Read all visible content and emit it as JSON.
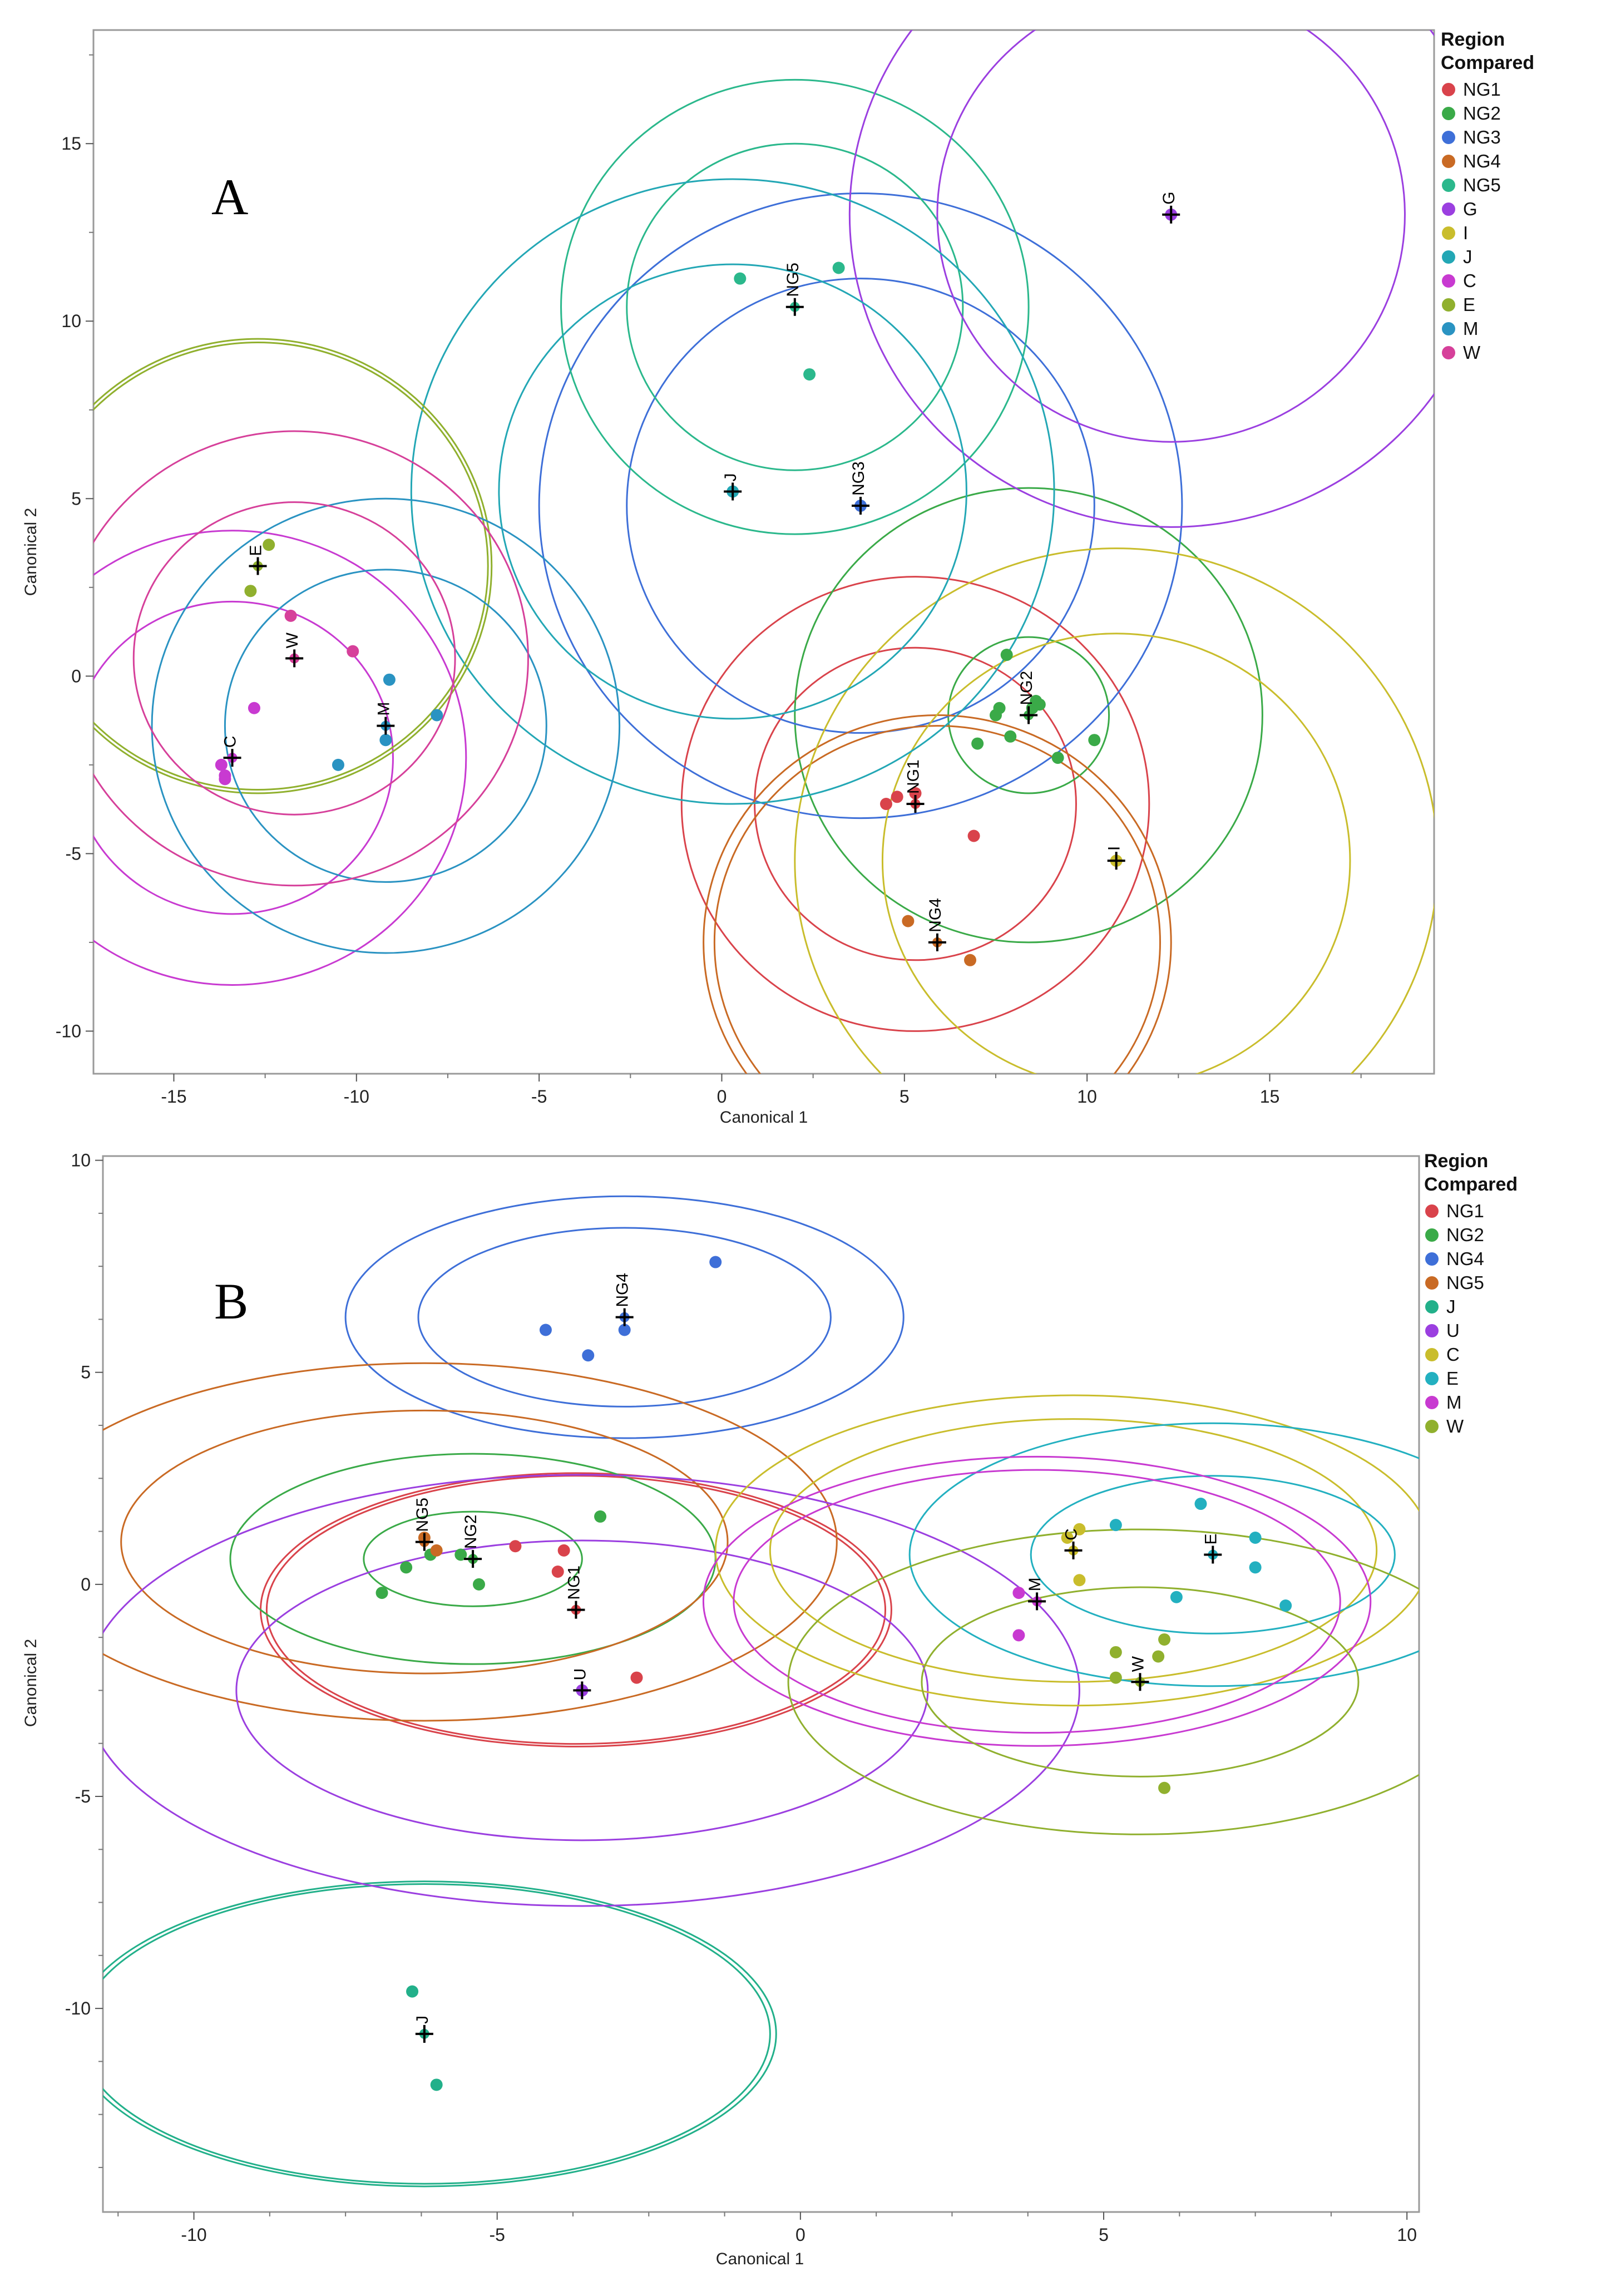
{
  "colors": {
    "NG1": "#d9434b",
    "NG2": "#3aaa48",
    "NG3": "#3e6fd8",
    "NG4": "#c96a24",
    "NG5": "#2bb88c",
    "G": "#9b3fe0",
    "I": "#c9bd2c",
    "J": "#23a7b5",
    "C": "#c83ad1",
    "E": "#90b02e",
    "M": "#2a93c2",
    "W": "#d6409a",
    "U": "#9b3fe0",
    "J2": "#22b08a",
    "E2": "#23b0c0",
    "M2": "#c83ad1",
    "W2": "#90b02e",
    "C2": "#c9bd2c",
    "NG5b": "#c96a24",
    "NG4b": "#3e6fd8"
  },
  "chart_data": [
    {
      "type": "scatter",
      "panel": "A",
      "title": "",
      "xlabel": "Canonical 1",
      "ylabel": "Canonical 2",
      "xlim": [
        -17.2,
        19.5
      ],
      "ylim": [
        -11.2,
        18.2
      ],
      "xticks": [
        "-15",
        "-10",
        "-5",
        "0",
        "5",
        "10",
        "15"
      ],
      "xtick_values": [
        -15,
        -10,
        -5,
        0,
        5,
        10,
        15
      ],
      "yticks": [
        "15",
        "10",
        "5",
        "0",
        "-5",
        "-10"
      ],
      "ytick_values": [
        15,
        10,
        5,
        0,
        -5,
        -10
      ],
      "legend_title": [
        "Region",
        "Compared"
      ],
      "legend": [
        {
          "label": "NG1",
          "color": "#d9434b"
        },
        {
          "label": "NG2",
          "color": "#3aaa48"
        },
        {
          "label": "NG3",
          "color": "#3e6fd8"
        },
        {
          "label": "NG4",
          "color": "#c96a24"
        },
        {
          "label": "NG5",
          "color": "#2bb88c"
        },
        {
          "label": "G",
          "color": "#9b3fe0"
        },
        {
          "label": "I",
          "color": "#c9bd2c"
        },
        {
          "label": "J",
          "color": "#23a7b5"
        },
        {
          "label": "C",
          "color": "#c83ad1"
        },
        {
          "label": "E",
          "color": "#90b02e"
        },
        {
          "label": "M",
          "color": "#2a93c2"
        },
        {
          "label": "W",
          "color": "#d6409a"
        }
      ],
      "groups": [
        {
          "name": "NG1",
          "color": "#d9434b",
          "centroid": [
            5.3,
            -3.6
          ],
          "r_inner": 4.4,
          "r_outer": 6.4,
          "points": [
            [
              4.5,
              -3.6
            ],
            [
              4.8,
              -3.4
            ],
            [
              5.3,
              -3.3
            ],
            [
              6.9,
              -4.5
            ]
          ]
        },
        {
          "name": "NG2",
          "color": "#3aaa48",
          "centroid": [
            8.4,
            -1.1
          ],
          "r_inner": 2.2,
          "r_outer": 6.4,
          "points": [
            [
              7.8,
              0.6
            ],
            [
              7.6,
              -0.9
            ],
            [
              7.5,
              -1.1
            ],
            [
              8.6,
              -0.7
            ],
            [
              8.7,
              -0.8
            ],
            [
              8.5,
              -0.9
            ],
            [
              7.9,
              -1.7
            ],
            [
              7.0,
              -1.9
            ],
            [
              9.2,
              -2.3
            ],
            [
              10.2,
              -1.8
            ]
          ]
        },
        {
          "name": "NG3",
          "color": "#3e6fd8",
          "centroid": [
            3.8,
            4.8
          ],
          "r_inner": 6.4,
          "r_outer": 8.8,
          "points": [
            [
              3.8,
              4.8
            ]
          ]
        },
        {
          "name": "NG4",
          "color": "#c96a24",
          "centroid": [
            5.9,
            -7.5
          ],
          "r_inner": 6.1,
          "r_outer": 6.4,
          "points": [
            [
              5.1,
              -6.9
            ],
            [
              6.8,
              -8.0
            ]
          ]
        },
        {
          "name": "NG5",
          "color": "#2bb88c",
          "centroid": [
            2.0,
            10.4
          ],
          "r_inner": 4.6,
          "r_outer": 6.4,
          "points": [
            [
              0.5,
              11.2
            ],
            [
              3.2,
              11.5
            ],
            [
              2.4,
              8.5
            ]
          ]
        },
        {
          "name": "G",
          "color": "#9b3fe0",
          "centroid": [
            12.3,
            13.0
          ],
          "r_inner": 6.4,
          "r_outer": 8.8,
          "points": [
            [
              12.3,
              13.0
            ]
          ]
        },
        {
          "name": "I",
          "color": "#c9bd2c",
          "centroid": [
            10.8,
            -5.2
          ],
          "r_inner": 6.4,
          "r_outer": 8.8,
          "points": [
            [
              10.8,
              -5.2
            ]
          ]
        },
        {
          "name": "J",
          "color": "#23a7b5",
          "centroid": [
            0.3,
            5.2
          ],
          "r_inner": 6.4,
          "r_outer": 8.8,
          "points": [
            [
              0.3,
              5.2
            ]
          ]
        },
        {
          "name": "C",
          "color": "#c83ad1",
          "centroid": [
            -13.4,
            -2.3
          ],
          "r_inner": 4.4,
          "r_outer": 6.4,
          "points": [
            [
              -12.8,
              -0.9
            ],
            [
              -13.7,
              -2.5
            ],
            [
              -13.6,
              -2.8
            ],
            [
              -13.6,
              -2.9
            ]
          ]
        },
        {
          "name": "E",
          "color": "#90b02e",
          "centroid": [
            -12.7,
            3.1
          ],
          "r_inner": 6.3,
          "r_outer": 6.4,
          "points": [
            [
              -12.4,
              3.7
            ],
            [
              -12.9,
              2.4
            ]
          ]
        },
        {
          "name": "M",
          "color": "#2a93c2",
          "centroid": [
            -9.2,
            -1.4
          ],
          "r_inner": 4.4,
          "r_outer": 6.4,
          "points": [
            [
              -9.1,
              -0.1
            ],
            [
              -7.8,
              -1.1
            ],
            [
              -9.2,
              -1.8
            ],
            [
              -10.5,
              -2.5
            ]
          ]
        },
        {
          "name": "W",
          "color": "#d6409a",
          "centroid": [
            -11.7,
            0.5
          ],
          "r_inner": 4.4,
          "r_outer": 6.4,
          "points": [
            [
              -11.8,
              1.7
            ],
            [
              -10.1,
              0.7
            ]
          ]
        }
      ]
    },
    {
      "type": "scatter",
      "panel": "B",
      "title": "",
      "xlabel": "Canonical 1",
      "ylabel": "Canonical 2",
      "xlim": [
        -11.5,
        10.2
      ],
      "ylim": [
        -14.8,
        10.1
      ],
      "xticks": [
        "-10",
        "-5",
        "0",
        "5",
        "10"
      ],
      "xtick_values": [
        -10,
        -5,
        0,
        5,
        10
      ],
      "yticks": [
        "10",
        "5",
        "0",
        "-5",
        "-10"
      ],
      "ytick_values": [
        10,
        5,
        0,
        -5,
        -10
      ],
      "legend_title": [
        "Region",
        "Compared"
      ],
      "legend": [
        {
          "label": "NG1",
          "color": "#d9434b"
        },
        {
          "label": "NG2",
          "color": "#3aaa48"
        },
        {
          "label": "NG4",
          "color": "#3e6fd8"
        },
        {
          "label": "NG5",
          "color": "#c96a24"
        },
        {
          "label": "J",
          "color": "#22b08a"
        },
        {
          "label": "U",
          "color": "#9b3fe0"
        },
        {
          "label": "C",
          "color": "#c9bd2c"
        },
        {
          "label": "E",
          "color": "#23b0c0"
        },
        {
          "label": "M",
          "color": "#c83ad1"
        },
        {
          "label": "W",
          "color": "#90b02e"
        }
      ],
      "groups": [
        {
          "name": "NG1",
          "color": "#d9434b",
          "centroid": [
            -3.7,
            -0.6
          ],
          "r_inner": 5.1,
          "r_outer": 5.2,
          "points": [
            [
              -4.7,
              0.9
            ],
            [
              -2.7,
              -2.2
            ],
            [
              -3.9,
              0.8
            ],
            [
              -4.0,
              0.3
            ]
          ]
        },
        {
          "name": "NG2",
          "color": "#3aaa48",
          "centroid": [
            -5.4,
            0.6
          ],
          "r_inner": 1.8,
          "r_outer": 4.0,
          "points": [
            [
              -3.3,
              1.6
            ],
            [
              -5.3,
              0.0
            ],
            [
              -5.6,
              0.7
            ],
            [
              -6.1,
              0.7
            ],
            [
              -6.5,
              0.4
            ],
            [
              -6.9,
              -0.2
            ]
          ]
        },
        {
          "name": "NG4",
          "color": "#3e6fd8",
          "centroid": [
            -2.9,
            6.3
          ],
          "r_inner": 3.4,
          "r_outer": 4.6,
          "points": [
            [
              -1.4,
              7.6
            ],
            [
              -4.2,
              6.0
            ],
            [
              -3.5,
              5.4
            ],
            [
              -2.9,
              6.0
            ]
          ]
        },
        {
          "name": "NG5",
          "color": "#c96a24",
          "centroid": [
            -6.2,
            1.0
          ],
          "r_inner": 5.0,
          "r_outer": 6.8,
          "points": [
            [
              -6.0,
              0.8
            ],
            [
              -6.2,
              1.1
            ]
          ]
        },
        {
          "name": "J",
          "color": "#22b08a",
          "centroid": [
            -6.2,
            -10.6
          ],
          "r_inner": 5.7,
          "r_outer": 5.8,
          "points": [
            [
              -6.4,
              -9.6
            ],
            [
              -6.0,
              -11.8
            ]
          ]
        },
        {
          "name": "U",
          "color": "#9b3fe0",
          "centroid": [
            -3.6,
            -2.5
          ],
          "r_inner": 5.7,
          "r_outer": 8.2,
          "points": [
            [
              -3.6,
              -2.5
            ]
          ]
        },
        {
          "name": "C",
          "color": "#c9bd2c",
          "centroid": [
            4.5,
            0.8
          ],
          "r_inner": 5.0,
          "r_outer": 5.9,
          "points": [
            [
              4.4,
              1.1
            ],
            [
              4.6,
              1.3
            ],
            [
              4.6,
              0.1
            ]
          ]
        },
        {
          "name": "E",
          "color": "#23b0c0",
          "centroid": [
            6.8,
            0.7
          ],
          "r_inner": 3.0,
          "r_outer": 5.0,
          "points": [
            [
              6.6,
              1.9
            ],
            [
              5.2,
              1.4
            ],
            [
              7.5,
              1.1
            ],
            [
              7.5,
              0.4
            ],
            [
              6.2,
              -0.3
            ],
            [
              8.0,
              -0.5
            ]
          ]
        },
        {
          "name": "M",
          "color": "#c83ad1",
          "centroid": [
            3.9,
            -0.4
          ],
          "r_inner": 5.0,
          "r_outer": 5.5,
          "points": [
            [
              3.6,
              -0.2
            ],
            [
              3.6,
              -1.2
            ]
          ]
        },
        {
          "name": "W",
          "color": "#90b02e",
          "centroid": [
            5.6,
            -2.3
          ],
          "r_inner": 3.6,
          "r_outer": 5.8,
          "points": [
            [
              5.2,
              -1.6
            ],
            [
              6.0,
              -1.3
            ],
            [
              5.9,
              -1.7
            ],
            [
              5.2,
              -2.2
            ],
            [
              6.0,
              -4.8
            ]
          ]
        }
      ]
    }
  ]
}
